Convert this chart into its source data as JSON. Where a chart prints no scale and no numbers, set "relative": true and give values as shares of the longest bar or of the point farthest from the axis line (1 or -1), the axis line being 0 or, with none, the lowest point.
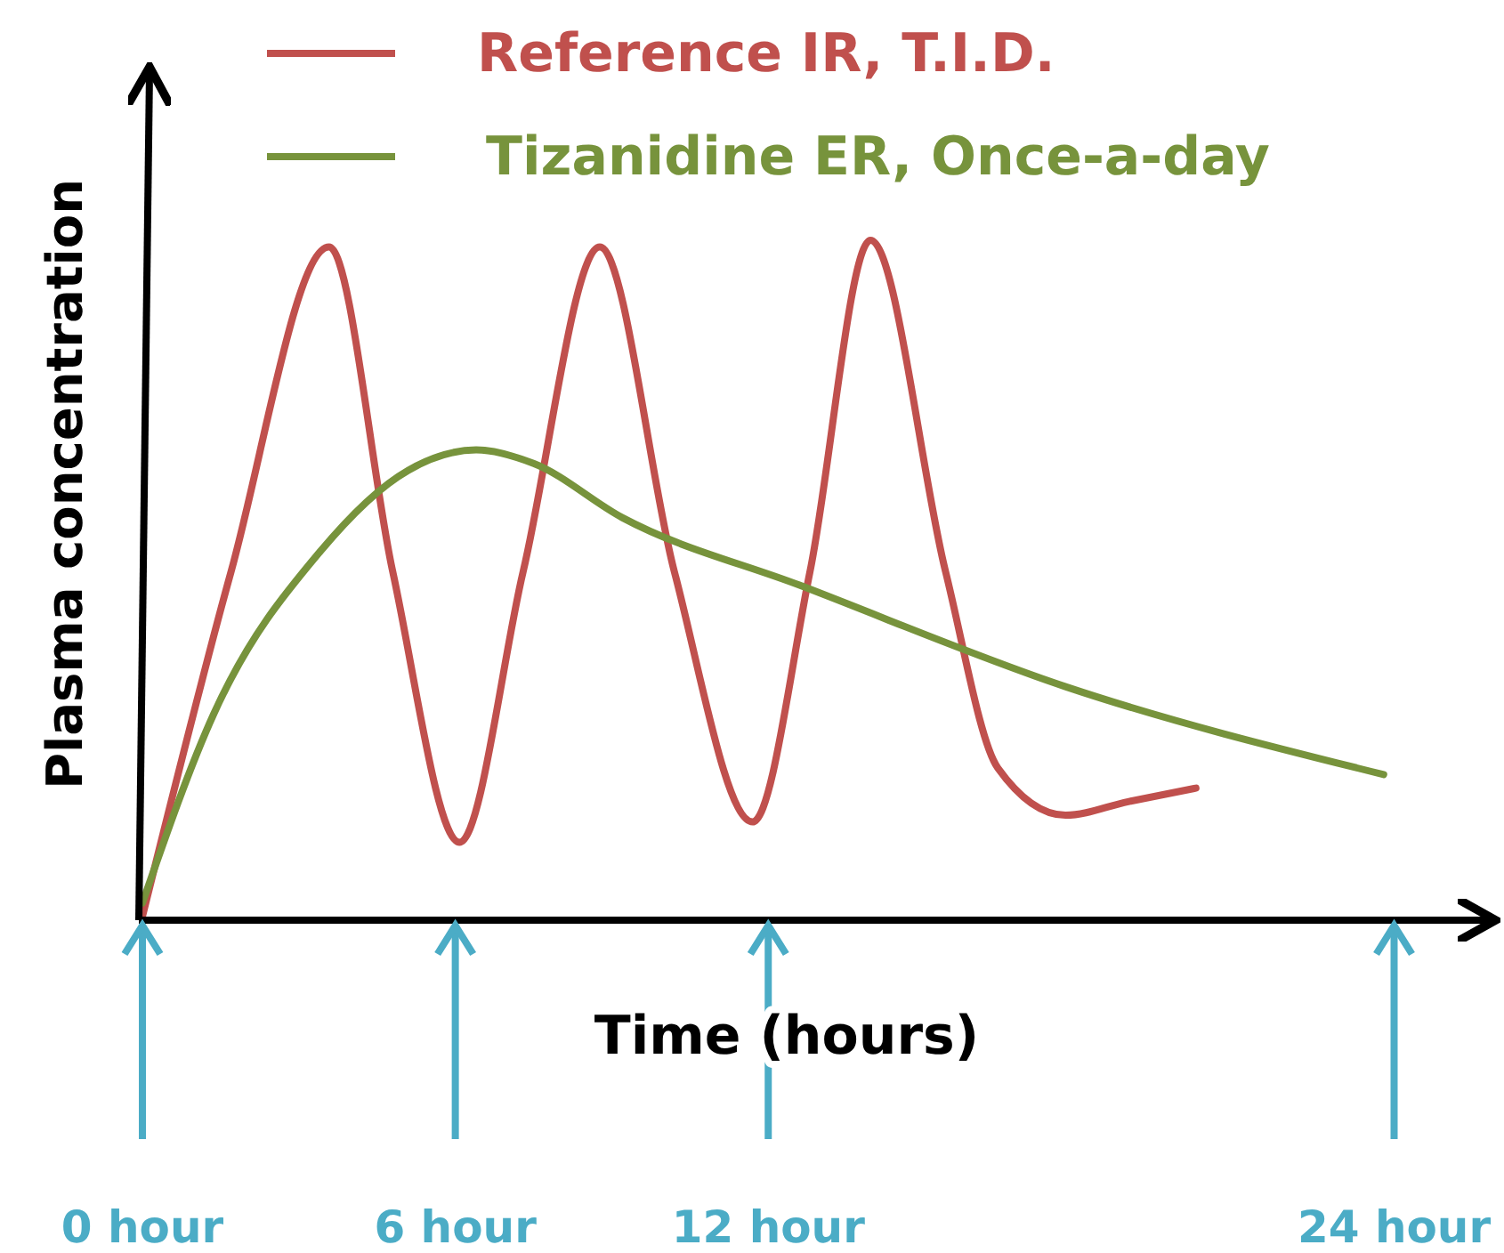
{
  "chart_data": {
    "type": "line",
    "relative": true,
    "xlabel": "Time (hours)",
    "ylabel": "Plasma concentration",
    "xlim": [
      0,
      25.8
    ],
    "xticks": [
      {
        "value": 0,
        "label": "0 hour"
      },
      {
        "value": 6,
        "label": "6 hour"
      },
      {
        "value": 12,
        "label": "12 hour"
      },
      {
        "value": 24,
        "label": "24 hour"
      }
    ],
    "legend": "top",
    "grid": false,
    "marker": "none",
    "line_style": "solid",
    "series": [
      {
        "name": "Reference IR, T.I.D.",
        "color": "#c0504d",
        "x": [
          0,
          1.7,
          3.58,
          4.8,
          6.08,
          7.3,
          8.77,
          10.2,
          11.7,
          12.8,
          13.96,
          15.4,
          16.4,
          17.7,
          18.9,
          20.2
        ],
        "values": [
          0,
          0.51,
          0.99,
          0.51,
          0.11,
          0.51,
          0.99,
          0.51,
          0.14,
          0.51,
          1,
          0.51,
          0.22,
          0.15,
          0.17,
          0.19
        ]
      },
      {
        "name": "Tizanidine ER, Once-a-day",
        "color": "#77933c",
        "x": [
          0,
          1.37,
          3.41,
          5.1,
          6.4,
          7.5,
          9.2,
          12.6,
          17.7,
          23.8
        ],
        "values": [
          0.02,
          0.3,
          0.54,
          0.66,
          0.69,
          0.67,
          0.59,
          0.49,
          0.34,
          0.21
        ]
      }
    ]
  }
}
